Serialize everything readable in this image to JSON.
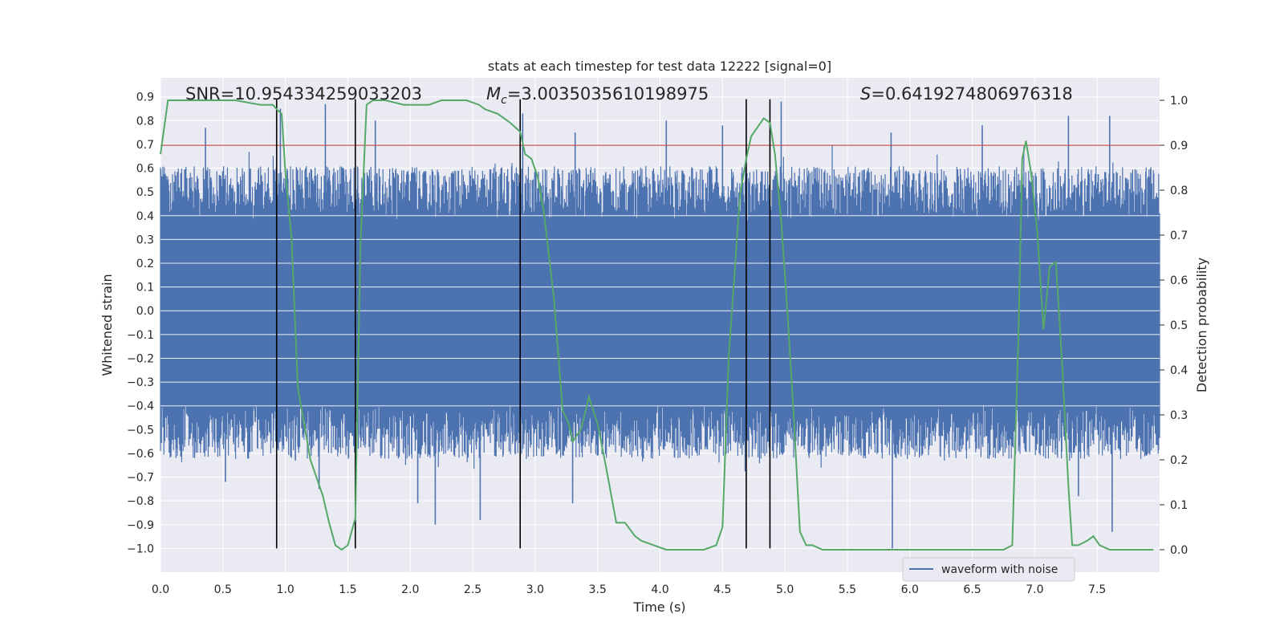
{
  "chart_data": {
    "type": "line",
    "title": "stats at each timestep for test data 12222 [signal=0]",
    "xlabel": "Time (s)",
    "ylabel_left": "Whitened strain",
    "ylabel_right": "Detection probability",
    "xlim": [
      0,
      8
    ],
    "ylim_left": [
      -1.1,
      0.98
    ],
    "ylim_right": [
      -0.05,
      1.05
    ],
    "x_ticks": [
      "0.0",
      "0.5",
      "1.0",
      "1.5",
      "2.0",
      "2.5",
      "3.0",
      "3.5",
      "4.0",
      "4.5",
      "5.0",
      "5.5",
      "6.0",
      "6.5",
      "7.0",
      "7.5"
    ],
    "x_tick_values": [
      0,
      0.5,
      1,
      1.5,
      2,
      2.5,
      3,
      3.5,
      4,
      4.5,
      5,
      5.5,
      6,
      6.5,
      7,
      7.5
    ],
    "y_ticks_left": [
      "0.9",
      "0.8",
      "0.7",
      "0.6",
      "0.5",
      "0.4",
      "0.3",
      "0.2",
      "0.1",
      "0.0",
      "−0.1",
      "−0.2",
      "−0.3",
      "−0.4",
      "−0.5",
      "−0.6",
      "−0.7",
      "−0.8",
      "−0.9",
      "−1.0"
    ],
    "y_tick_values_left": [
      0.9,
      0.8,
      0.7,
      0.6,
      0.5,
      0.4,
      0.3,
      0.2,
      0.1,
      0,
      -0.1,
      -0.2,
      -0.3,
      -0.4,
      -0.5,
      -0.6,
      -0.7,
      -0.8,
      -0.9,
      -1.0
    ],
    "y_ticks_right": [
      "1.0",
      "0.9",
      "0.8",
      "0.7",
      "0.6",
      "0.5",
      "0.4",
      "0.3",
      "0.2",
      "0.1",
      "0.0"
    ],
    "y_tick_values_right": [
      1.0,
      0.9,
      0.8,
      0.7,
      0.6,
      0.5,
      0.4,
      0.3,
      0.2,
      0.1,
      0
    ],
    "grid": true,
    "threshold": {
      "value_right": 0.9,
      "color": "#c44e52"
    },
    "vertical_lines_x": [
      0.93,
      1.56,
      2.88,
      4.69,
      4.88
    ],
    "vertical_line_color": "#000000",
    "waveform": {
      "name": "waveform with noise",
      "color": "#4c72b0",
      "typical_lower": -0.43,
      "typical_upper": 0.42,
      "peaks": [
        {
          "x": 0.36,
          "y": 0.77
        },
        {
          "x": 0.96,
          "y": 0.85
        },
        {
          "x": 1.32,
          "y": 0.87
        },
        {
          "x": 1.72,
          "y": 0.8
        },
        {
          "x": 2.9,
          "y": 0.83
        },
        {
          "x": 3.32,
          "y": 0.75
        },
        {
          "x": 4.05,
          "y": 0.8
        },
        {
          "x": 4.5,
          "y": 0.78
        },
        {
          "x": 4.97,
          "y": 0.88
        },
        {
          "x": 5.85,
          "y": 0.75
        },
        {
          "x": 6.58,
          "y": 0.78
        },
        {
          "x": 7.27,
          "y": 0.82
        },
        {
          "x": 7.6,
          "y": 0.82
        }
      ],
      "troughs": [
        {
          "x": 0.52,
          "y": -0.72
        },
        {
          "x": 1.08,
          "y": -0.63
        },
        {
          "x": 1.27,
          "y": -0.75
        },
        {
          "x": 2.06,
          "y": -0.81
        },
        {
          "x": 2.2,
          "y": -0.9
        },
        {
          "x": 2.56,
          "y": -0.88
        },
        {
          "x": 3.3,
          "y": -0.81
        },
        {
          "x": 5.86,
          "y": -1.0
        },
        {
          "x": 7.35,
          "y": -0.78
        },
        {
          "x": 7.62,
          "y": -0.93
        }
      ]
    },
    "detection_probability": {
      "color": "#55a868",
      "x": [
        0.0,
        0.06,
        0.1,
        0.2,
        0.4,
        0.6,
        0.8,
        0.9,
        0.93,
        0.97,
        1.0,
        1.05,
        1.1,
        1.2,
        1.3,
        1.35,
        1.4,
        1.45,
        1.5,
        1.56,
        1.6,
        1.65,
        1.7,
        1.8,
        1.95,
        2.05,
        2.15,
        2.25,
        2.35,
        2.45,
        2.55,
        2.6,
        2.7,
        2.8,
        2.88,
        2.92,
        2.97,
        3.02,
        3.07,
        3.15,
        3.22,
        3.27,
        3.3,
        3.37,
        3.43,
        3.5,
        3.57,
        3.65,
        3.72,
        3.8,
        3.85,
        3.95,
        4.05,
        4.15,
        4.25,
        4.35,
        4.45,
        4.5,
        4.55,
        4.6,
        4.64,
        4.69,
        4.73,
        4.78,
        4.83,
        4.88,
        4.92,
        4.97,
        5.02,
        5.07,
        5.12,
        5.17,
        5.22,
        5.3,
        5.4,
        5.55,
        5.7,
        5.85,
        5.98,
        6.1,
        6.2,
        6.35,
        6.5,
        6.65,
        6.75,
        6.82,
        6.87,
        6.9,
        6.93,
        6.97,
        7.02,
        7.07,
        7.12,
        7.17,
        7.22,
        7.27,
        7.3,
        7.35,
        7.42,
        7.47,
        7.52,
        7.6,
        7.7,
        7.85,
        7.95
      ],
      "y": [
        0.88,
        1.0,
        1.0,
        1.0,
        1.0,
        1.0,
        0.99,
        0.99,
        0.98,
        0.97,
        0.84,
        0.69,
        0.36,
        0.2,
        0.12,
        0.06,
        0.01,
        0.0,
        0.01,
        0.07,
        0.67,
        0.99,
        1.0,
        1.0,
        0.99,
        0.99,
        0.99,
        1.0,
        1.0,
        1.0,
        0.99,
        0.98,
        0.97,
        0.95,
        0.93,
        0.88,
        0.87,
        0.83,
        0.75,
        0.56,
        0.31,
        0.28,
        0.24,
        0.27,
        0.34,
        0.28,
        0.18,
        0.06,
        0.06,
        0.03,
        0.02,
        0.01,
        0.0,
        0.0,
        0.0,
        0.0,
        0.01,
        0.05,
        0.43,
        0.63,
        0.79,
        0.87,
        0.92,
        0.94,
        0.96,
        0.95,
        0.88,
        0.73,
        0.53,
        0.3,
        0.04,
        0.01,
        0.01,
        0.0,
        0.0,
        0.0,
        0.0,
        0.0,
        0.0,
        0.0,
        0.0,
        0.0,
        0.0,
        0.0,
        0.0,
        0.01,
        0.48,
        0.87,
        0.91,
        0.84,
        0.71,
        0.49,
        0.63,
        0.64,
        0.41,
        0.14,
        0.01,
        0.01,
        0.02,
        0.03,
        0.01,
        0.0,
        0.0,
        0.0,
        0.0
      ]
    },
    "annotations": [
      {
        "kind": "plain",
        "text": "SNR=10.954334259033203"
      },
      {
        "kind": "mc",
        "symbol": "M",
        "subscript": "c",
        "text": "=3.0035035610198975"
      },
      {
        "kind": "italic",
        "symbol": "S",
        "text": "=0.6419274806976318"
      }
    ],
    "legend": {
      "entries": [
        "waveform with noise"
      ],
      "placement": "lower-right"
    }
  }
}
